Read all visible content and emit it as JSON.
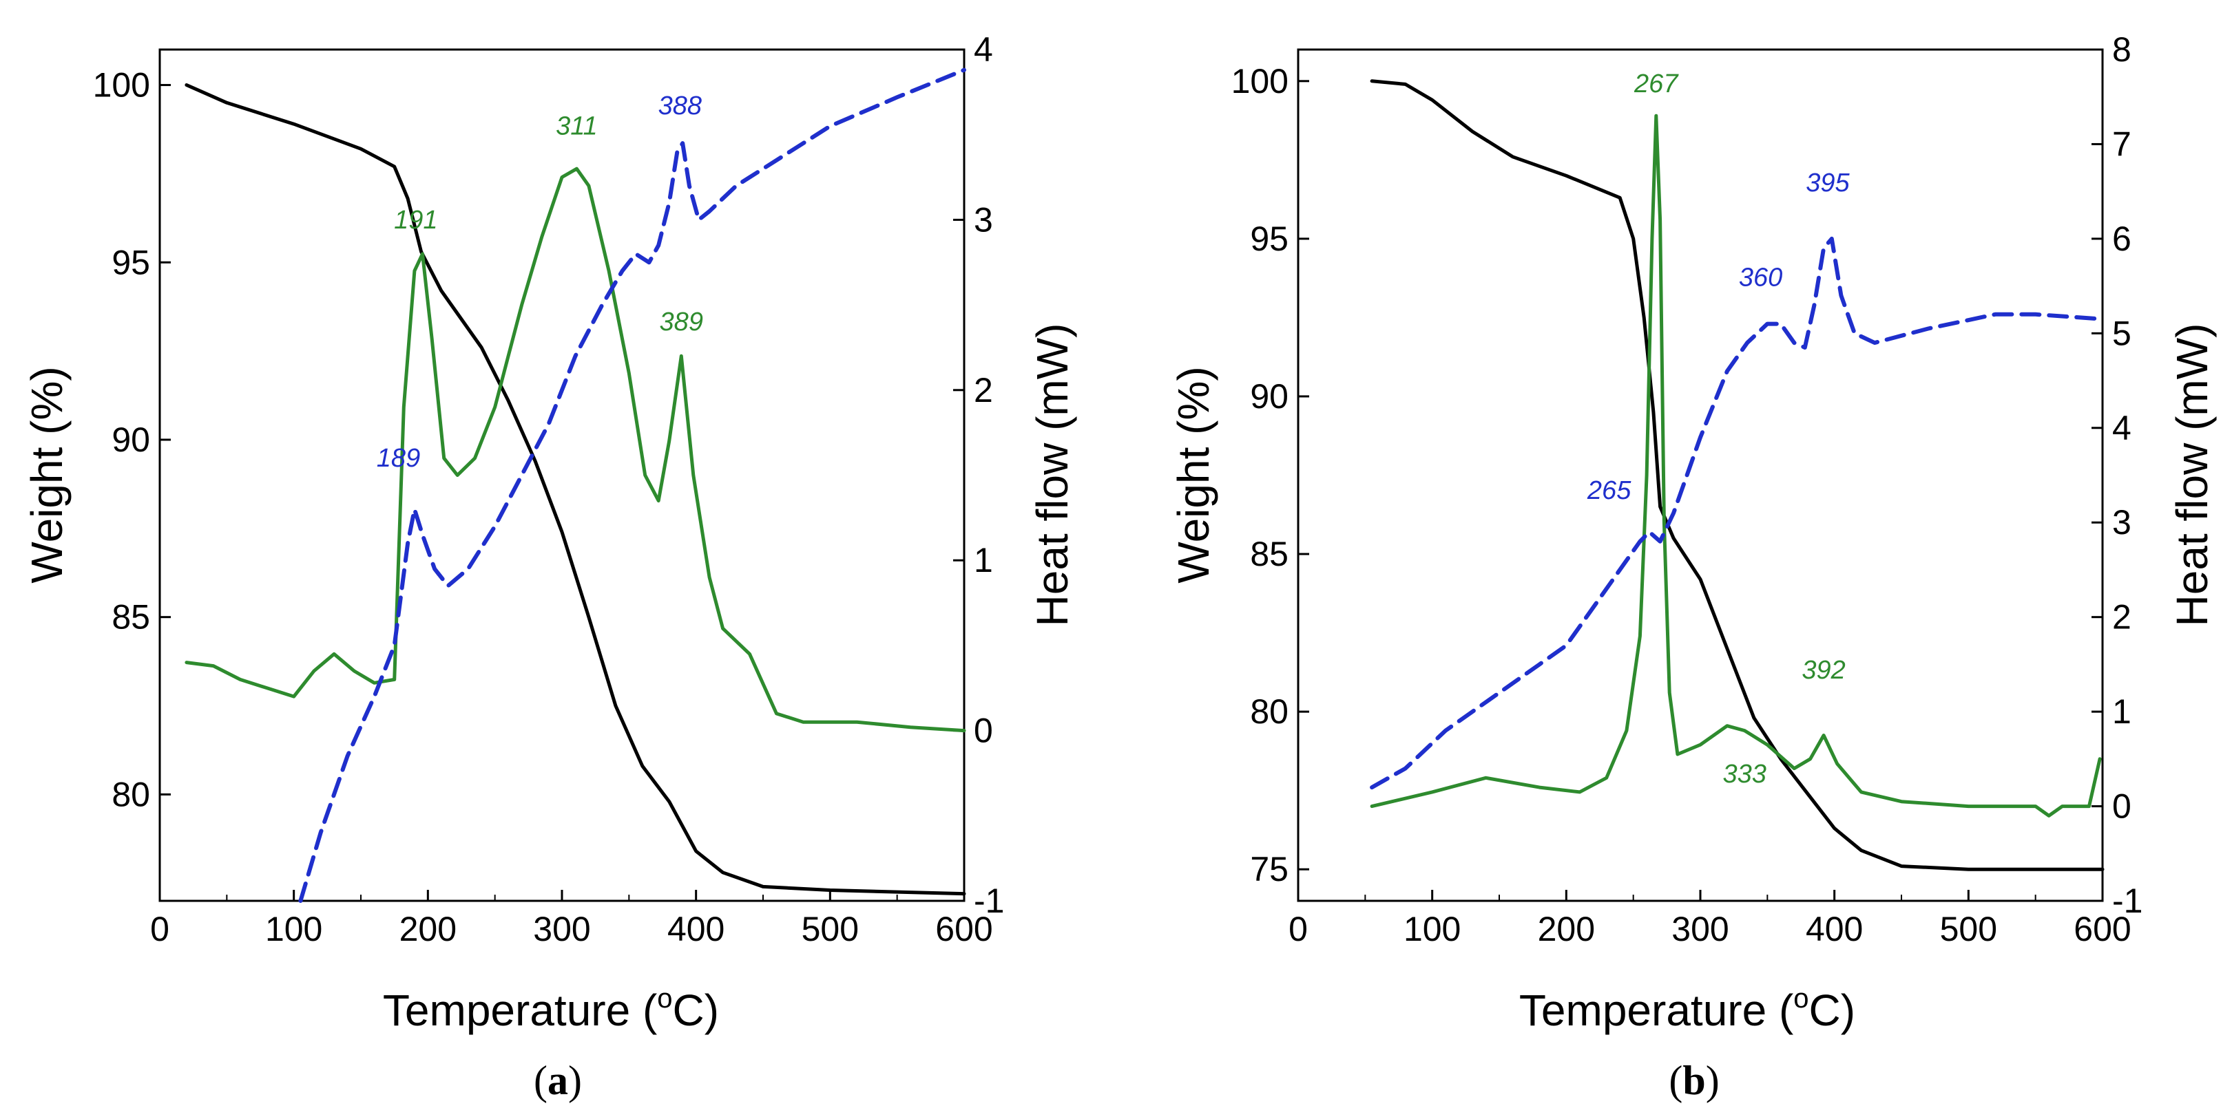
{
  "colors": {
    "weight": "#000000",
    "dta": "#2e8b2e",
    "dsc": "#1f2fcc",
    "annot_green": "#2e8b2e",
    "annot_blue": "#1f2fcc"
  },
  "chart_data": [
    {
      "type": "line",
      "panel": "(a)",
      "panel_letter": "a",
      "xlabel": "Temperature (°C)",
      "xlabel_main": "Temperature (",
      "xlabel_sup": "o",
      "xlabel_unit": "C)",
      "ylabel_left": "Weight (%)",
      "ylabel_right": "Heat flow (mW)",
      "xlim": [
        0,
        600
      ],
      "ylim_left": [
        77,
        101
      ],
      "ylim_right": [
        -1,
        4
      ],
      "xticks": [
        0,
        100,
        200,
        300,
        400,
        500,
        600
      ],
      "yticks_left": [
        80,
        85,
        90,
        95,
        100
      ],
      "yticks_right": [
        -1,
        0,
        1,
        2,
        3,
        4
      ],
      "series": [
        {
          "name": "weight",
          "axis": "left",
          "style": "solid",
          "color": "#000000",
          "x": [
            20,
            50,
            100,
            150,
            175,
            185,
            195,
            210,
            240,
            260,
            280,
            300,
            320,
            340,
            360,
            380,
            400,
            420,
            450,
            500,
            600
          ],
          "y": [
            100,
            99.5,
            98.9,
            98.2,
            97.7,
            96.8,
            95.3,
            94.2,
            92.6,
            91.1,
            89.4,
            87.4,
            85.0,
            82.5,
            80.8,
            79.8,
            78.4,
            77.8,
            77.4,
            77.3,
            77.2
          ]
        },
        {
          "name": "dta",
          "axis": "right",
          "style": "solid",
          "color": "#2e8b2e",
          "x": [
            20,
            40,
            60,
            80,
            100,
            115,
            130,
            145,
            160,
            175,
            182,
            190,
            196,
            203,
            212,
            222,
            235,
            250,
            260,
            270,
            285,
            300,
            311,
            320,
            335,
            350,
            362,
            372,
            380,
            389,
            398,
            410,
            420,
            440,
            460,
            480,
            520,
            560,
            600
          ],
          "y": [
            0.4,
            0.38,
            0.3,
            0.25,
            0.2,
            0.35,
            0.45,
            0.35,
            0.28,
            0.3,
            1.9,
            2.7,
            2.8,
            2.3,
            1.6,
            1.5,
            1.6,
            1.9,
            2.2,
            2.5,
            2.9,
            3.25,
            3.3,
            3.2,
            2.7,
            2.1,
            1.5,
            1.35,
            1.7,
            2.2,
            1.5,
            0.9,
            0.6,
            0.45,
            0.1,
            0.05,
            0.05,
            0.02,
            0.0
          ]
        },
        {
          "name": "dsc",
          "axis": "right",
          "style": "dashed",
          "color": "#1f2fcc",
          "x": [
            105,
            120,
            140,
            160,
            175,
            185,
            190,
            196,
            205,
            215,
            230,
            250,
            270,
            290,
            310,
            330,
            345,
            355,
            365,
            372,
            380,
            386,
            390,
            395,
            402,
            410,
            430,
            450,
            480,
            500,
            550,
            600
          ],
          "y": [
            -1.0,
            -0.6,
            -0.15,
            0.2,
            0.5,
            1.1,
            1.3,
            1.15,
            0.95,
            0.85,
            0.95,
            1.2,
            1.5,
            1.8,
            2.2,
            2.5,
            2.7,
            2.8,
            2.75,
            2.85,
            3.1,
            3.4,
            3.45,
            3.2,
            3.0,
            3.05,
            3.2,
            3.3,
            3.45,
            3.55,
            3.72,
            3.88
          ]
        }
      ],
      "annotations": [
        {
          "text": "191",
          "x": 191,
          "y": 2.95,
          "color": "green"
        },
        {
          "text": "311",
          "x": 311,
          "y": 3.5,
          "color": "green"
        },
        {
          "text": "389",
          "x": 389,
          "y": 2.35,
          "color": "green"
        },
        {
          "text": "388",
          "x": 388,
          "y": 3.62,
          "color": "blue"
        },
        {
          "text": "189",
          "x": 178,
          "y": 1.55,
          "color": "blue"
        }
      ]
    },
    {
      "type": "line",
      "panel": "(b)",
      "panel_letter": "b",
      "xlabel": "Temperature (°C)",
      "xlabel_main": "Temperature (",
      "xlabel_sup": "o",
      "xlabel_unit": "C)",
      "ylabel_left": "Weight (%)",
      "ylabel_right": "Heat flow (mW)",
      "xlim": [
        0,
        600
      ],
      "ylim_left": [
        74,
        101
      ],
      "ylim_right": [
        -1,
        8
      ],
      "xticks": [
        0,
        100,
        200,
        300,
        400,
        500,
        600
      ],
      "yticks_left": [
        75,
        80,
        85,
        90,
        95,
        100
      ],
      "yticks_right": [
        -1,
        0,
        1,
        2,
        3,
        4,
        5,
        6,
        7,
        8
      ],
      "series": [
        {
          "name": "weight",
          "axis": "left",
          "style": "solid",
          "color": "#000000",
          "x": [
            55,
            80,
            100,
            130,
            160,
            200,
            240,
            250,
            258,
            265,
            270,
            280,
            300,
            320,
            340,
            360,
            380,
            400,
            420,
            450,
            500,
            550,
            600
          ],
          "y": [
            100,
            99.9,
            99.4,
            98.4,
            97.6,
            97.0,
            96.3,
            95.0,
            92.5,
            89.5,
            86.5,
            85.5,
            84.2,
            82.0,
            79.8,
            78.5,
            77.4,
            76.3,
            75.6,
            75.1,
            75.0,
            75.0,
            75.0
          ]
        },
        {
          "name": "dta",
          "axis": "right",
          "style": "solid",
          "color": "#2e8b2e",
          "x": [
            55,
            100,
            140,
            180,
            210,
            230,
            245,
            255,
            260,
            264,
            267,
            270,
            273,
            277,
            283,
            300,
            320,
            333,
            350,
            370,
            382,
            392,
            402,
            420,
            450,
            500,
            550,
            560,
            570,
            590,
            598
          ],
          "y": [
            0.0,
            0.15,
            0.3,
            0.2,
            0.15,
            0.3,
            0.8,
            1.8,
            3.5,
            6.0,
            7.3,
            6.2,
            3.0,
            1.2,
            0.55,
            0.65,
            0.85,
            0.8,
            0.65,
            0.4,
            0.5,
            0.75,
            0.45,
            0.15,
            0.05,
            0.0,
            0.0,
            -0.1,
            0.0,
            0.0,
            0.5
          ]
        },
        {
          "name": "dsc",
          "axis": "right",
          "style": "dashed",
          "color": "#1f2fcc",
          "x": [
            55,
            80,
            110,
            150,
            180,
            200,
            220,
            240,
            255,
            262,
            270,
            280,
            300,
            320,
            335,
            350,
            360,
            370,
            378,
            385,
            392,
            398,
            405,
            415,
            430,
            470,
            520,
            550,
            600
          ],
          "y": [
            0.2,
            0.4,
            0.8,
            1.2,
            1.5,
            1.7,
            2.1,
            2.5,
            2.8,
            2.9,
            2.8,
            3.1,
            3.9,
            4.6,
            4.9,
            5.1,
            5.1,
            4.9,
            4.85,
            5.3,
            5.9,
            6.0,
            5.4,
            5.0,
            4.9,
            5.05,
            5.2,
            5.2,
            5.15
          ]
        }
      ],
      "annotations": [
        {
          "text": "267",
          "x": 267,
          "y": 7.55,
          "color": "green"
        },
        {
          "text": "333",
          "x": 333,
          "y": 0.25,
          "color": "green"
        },
        {
          "text": "392",
          "x": 392,
          "y": 1.35,
          "color": "green"
        },
        {
          "text": "395",
          "x": 395,
          "y": 6.5,
          "color": "blue"
        },
        {
          "text": "360",
          "x": 345,
          "y": 5.5,
          "color": "blue"
        },
        {
          "text": "265",
          "x": 232,
          "y": 3.25,
          "color": "blue"
        }
      ]
    }
  ]
}
